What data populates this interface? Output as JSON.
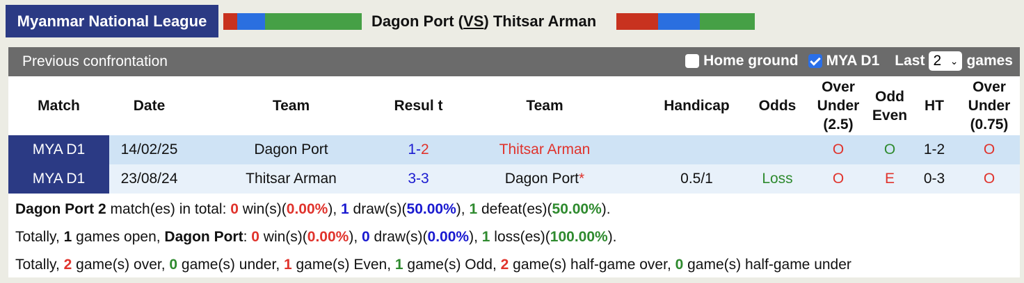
{
  "header": {
    "league": "Myanmar National League",
    "home": "Dagon Port",
    "vs": "VS",
    "away": "Thitsar Arman",
    "colors": {
      "red": "#c8321f",
      "blue": "#2a6fe0",
      "green": "#46a046",
      "navy": "#2b3a84"
    }
  },
  "panel": {
    "title": "Previous confrontation",
    "home_ground_label": "Home ground",
    "home_ground_checked": false,
    "league_filter_label": "MYA D1",
    "league_filter_checked": true,
    "last_label": "Last",
    "last_value": "2",
    "games_label": "games"
  },
  "table": {
    "columns": [
      "Match",
      "Date",
      "Team",
      "Resul t",
      "Team",
      "Handicap",
      "Odds",
      "Over Under (2.5)",
      "Odd Even",
      "HT",
      "Over Under (0.75)"
    ],
    "rows": [
      {
        "match": "MYA D1",
        "date": "14/02/25",
        "home": "Dagon Port",
        "score_h": "1",
        "score_a": "2",
        "away": "Thitsar Arman",
        "away_star": "",
        "handicap": "",
        "odds": "",
        "ou": "O",
        "oe": "O",
        "ht": "1-2",
        "ou2": "O"
      },
      {
        "match": "MYA D1",
        "date": "23/08/24",
        "home": "Thitsar Arman",
        "score_h": "3",
        "score_a": "3",
        "away": "Dagon Port",
        "away_star": "*",
        "handicap": "0.5/1",
        "odds": "Loss",
        "ou": "O",
        "oe": "E",
        "ht": "0-3",
        "ou2": "O"
      }
    ]
  },
  "summary": {
    "l1": {
      "team": "Dagon Port",
      "n": "2",
      "t1": " match(es) in total: ",
      "w": "0",
      "t2": " win(s)(",
      "wp": "0.00%",
      "t3": "), ",
      "d": "1",
      "t4": " draw(s)(",
      "dp": "50.00%",
      "t5": "), ",
      "l": "1",
      "t6": " defeat(es)(",
      "lp": "50.00%",
      "t7": ")."
    },
    "l2": {
      "t0": "Totally, ",
      "n": "1",
      "t1": " games open, ",
      "team": "Dagon Port",
      "t2": ": ",
      "w": "0",
      "t3": " win(s)(",
      "wp": "0.00%",
      "t4": "), ",
      "d": "0",
      "t5": " draw(s)(",
      "dp": "0.00%",
      "t6": "), ",
      "l": "1",
      "t7": " loss(es)(",
      "lp": "100.00%",
      "t8": ")."
    },
    "l3": {
      "t0": "Totally, ",
      "over": "2",
      "t1": " game(s) over, ",
      "under": "0",
      "t2": " game(s) under, ",
      "even": "1",
      "t3": " game(s) Even, ",
      "odd": "1",
      "t4": " game(s) Odd, ",
      "hover": "2",
      "t5": " game(s) half-game over, ",
      "hunder": "0",
      "t6": " game(s) half-game under"
    }
  }
}
